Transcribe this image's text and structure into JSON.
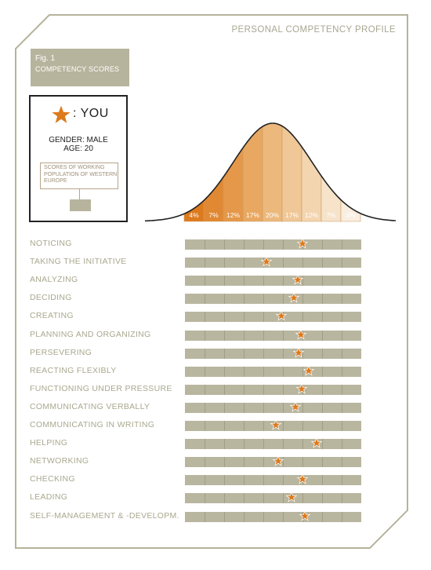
{
  "page": {
    "title": "PERSONAL COMPETENCY PROFILE"
  },
  "figure": {
    "number": "Fig. 1",
    "title": "COMPETENCY SCORES"
  },
  "legend": {
    "you_label": ": YOU",
    "gender": "GENDER: MALE",
    "age": "AGE: 20",
    "population_label": "SCORES OF WORKING POPULATION OF WESTERN EUROPE",
    "icon": "star-icon"
  },
  "colors": {
    "accent": "#dc7a1d",
    "bar": "#b9b6a0",
    "frame": "#b6b39b",
    "label": "#a9a88f"
  },
  "distribution": {
    "percentages": [
      "4%",
      "7%",
      "12%",
      "17%",
      "20%",
      "17%",
      "12%",
      "7%",
      "4%"
    ],
    "colors": [
      "#dc7a1d",
      "#e18832",
      "#e59849",
      "#e8a862",
      "#ecb87c",
      "#f0c796",
      "#f3d5b0",
      "#f6e3ca",
      "#f9eee0"
    ]
  },
  "scale": {
    "segments": 9
  },
  "competencies": [
    {
      "label": "NOTICING",
      "score": 6.0
    },
    {
      "label": "TAKING THE INITIATIVE",
      "score": 4.15
    },
    {
      "label": "ANALYZING",
      "score": 5.75
    },
    {
      "label": "DECIDING",
      "score": 5.55
    },
    {
      "label": "CREATING",
      "score": 4.9
    },
    {
      "label": "PLANNING AND ORGANIZING",
      "score": 5.9
    },
    {
      "label": "PERSEVERING",
      "score": 5.8
    },
    {
      "label": "REACTING FLEXIBLY",
      "score": 6.3
    },
    {
      "label": "FUNCTIONING UNDER PRESSURE",
      "score": 5.95
    },
    {
      "label": "COMMUNICATING VERBALLY",
      "score": 5.65
    },
    {
      "label": "COMMUNICATING IN WRITING",
      "score": 4.65
    },
    {
      "label": "HELPING",
      "score": 6.7
    },
    {
      "label": "NETWORKING",
      "score": 4.75
    },
    {
      "label": "CHECKING",
      "score": 6.0
    },
    {
      "label": "LEADING",
      "score": 5.45
    },
    {
      "label": "SELF-MANAGEMENT & -DEVELOPM.",
      "score": 6.1
    }
  ]
}
